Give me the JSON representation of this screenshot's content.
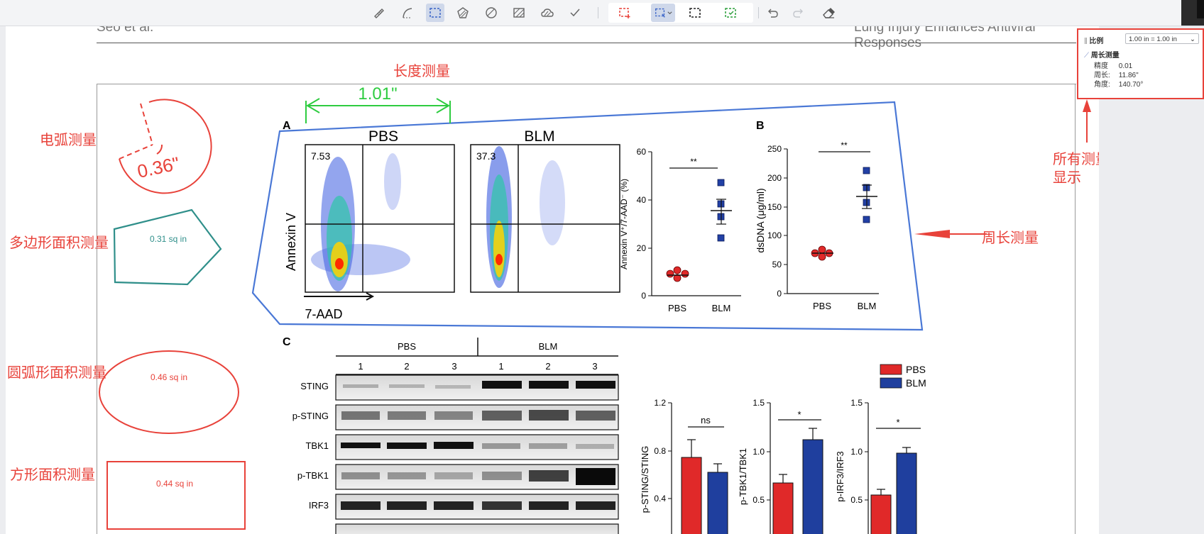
{
  "toolbar": {
    "tools": [
      {
        "name": "ruler-tool",
        "icon": "ruler-icon",
        "active": false
      },
      {
        "name": "arc-tool",
        "icon": "arc-icon",
        "active": false
      },
      {
        "name": "rect-dashed-tool",
        "icon": "dashed-rect-icon",
        "active": true
      },
      {
        "name": "polygon-area-tool",
        "icon": "polygon-hatch-icon",
        "active": false
      },
      {
        "name": "circle-area-tool",
        "icon": "circle-hatch-icon",
        "active": false
      },
      {
        "name": "rect-area-tool",
        "icon": "rect-hatch-icon",
        "active": false
      },
      {
        "name": "cloud-tool",
        "icon": "cloud-hatch-icon",
        "active": false
      },
      {
        "name": "check-tool",
        "icon": "check-icon",
        "active": false
      }
    ]
  },
  "header": {
    "left": "Seo et al.",
    "right": "Lung Injury Enhances Antiviral Responses"
  },
  "annotations": {
    "length_title": "长度测量",
    "length_value": "1.01\"",
    "arc_title": "电弧测量",
    "arc_value": "0.36\"",
    "polygon_title": "多边形面积测量",
    "polygon_value": "0.31 sq in",
    "ellipse_title": "圆弧形面积测量",
    "ellipse_value": "0.46 sq in",
    "rect_title": "方形面积测量",
    "rect_value": "0.44 sq in",
    "perimeter_title": "周长测量",
    "results_title_1": "所有测量结果数据",
    "results_title_2": "显示"
  },
  "panel": {
    "scale_label": "比例",
    "scale_value": "1.00 in = 1.00 in",
    "section_title": "周长测量",
    "rows": [
      {
        "label": "精度",
        "value": "0.01"
      },
      {
        "label": "周长:",
        "value": "11.86\""
      },
      {
        "label": "角度:",
        "value": "140.70°"
      }
    ]
  },
  "figure": {
    "panel_a": "A",
    "panel_b": "B",
    "panel_c": "C",
    "flow_pbs_title": "PBS",
    "flow_blm_title": "BLM",
    "flow_pbs_value": "7.53",
    "flow_blm_value": "37.3",
    "flow_ylabel": "Annexin V",
    "flow_xlabel": "7-AAD",
    "scatter_a_ylabel": "Annexin V⁺/7-AAD⁻ (%)",
    "scatter_a_ticks": [
      "0",
      "20",
      "40",
      "60"
    ],
    "scatter_b_ylabel": "dsDNA (μg/ml)",
    "scatter_b_ticks": [
      "0",
      "50",
      "100",
      "150",
      "200",
      "250"
    ],
    "sig_double": "**",
    "x_pbs": "PBS",
    "x_blm": "BLM",
    "blot_group_pbs": "PBS",
    "blot_group_blm": "BLM",
    "lanes": [
      "1",
      "2",
      "3",
      "1",
      "2",
      "3"
    ],
    "blot_rows": [
      "STING",
      "p-STING",
      "TBK1",
      "p-TBK1",
      "IRF3"
    ],
    "legend_pbs": "PBS",
    "legend_blm": "BLM",
    "bar1_ylabel": "p-STING/STING",
    "bar1_ticks": [
      "0.4",
      "0.8",
      "1.2"
    ],
    "bar1_sig": "ns",
    "bar2_ylabel": "p-TBK1/TBK1",
    "bar2_ticks": [
      "0.5",
      "1.0",
      "1.5"
    ],
    "bar2_sig": "*",
    "bar3_ylabel": "p-IRF3/IRF3",
    "bar3_ticks": [
      "0.5",
      "1.0",
      "1.5"
    ],
    "bar3_sig": "*"
  },
  "colors": {
    "annotation_red": "#e8423a",
    "length_green": "#2ecc40",
    "perimeter_blue": "#4a78d6",
    "polygon_teal": "#2f8f8a",
    "pbs_red": "#e02929",
    "blm_blue": "#1f3f9e"
  }
}
